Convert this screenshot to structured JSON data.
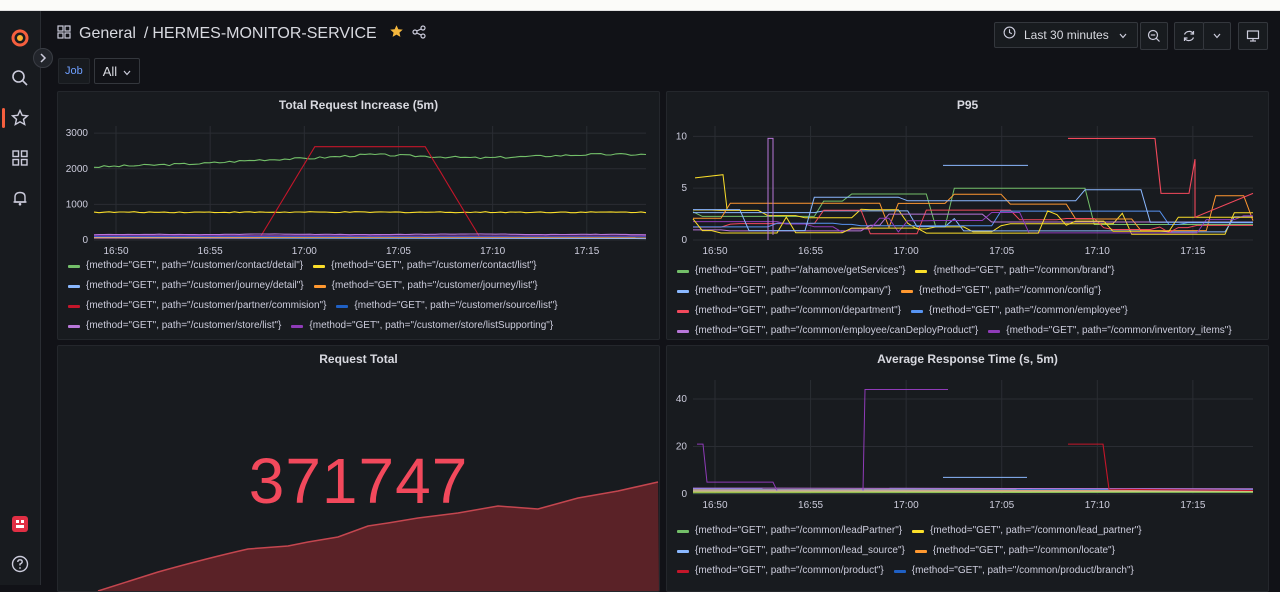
{
  "header": {
    "breadcrumb_folder": "General",
    "breadcrumb_separator": "/",
    "dashboard_title": "HERMES-MONITOR-SERVICE",
    "time_range": "Last 30 minutes"
  },
  "variables": {
    "job_label": "Job",
    "job_value": "All"
  },
  "colors": {
    "green": "#73bf69",
    "yellow": "#fade2a",
    "blue": "#8ab8ff",
    "orange": "#ff9830",
    "red": "#f2495c",
    "darkblue": "#5794f2",
    "darkred": "#c4162a",
    "navy": "#1f60c4",
    "purple": "#b877d9",
    "violet": "#8f3bb8",
    "stat_red": "#f2495c"
  },
  "panels": {
    "total_increase": {
      "title": "Total Request Increase (5m)",
      "legend": [
        {
          "label": "{method=\"GET\", path=\"/customer/contact/detail\"}",
          "color": "#73bf69"
        },
        {
          "label": "{method=\"GET\", path=\"/customer/contact/list\"}",
          "color": "#fade2a"
        },
        {
          "label": "{method=\"GET\", path=\"/customer/journey/detail\"}",
          "color": "#8ab8ff"
        },
        {
          "label": "{method=\"GET\", path=\"/customer/journey/list\"}",
          "color": "#ff9830"
        },
        {
          "label": "{method=\"GET\", path=\"/customer/partner/commision\"}",
          "color": "#c4162a"
        },
        {
          "label": "{method=\"GET\", path=\"/customer/source/list\"}",
          "color": "#1f60c4"
        },
        {
          "label": "{method=\"GET\", path=\"/customer/store/list\"}",
          "color": "#b877d9"
        },
        {
          "label": "{method=\"GET\", path=\"/customer/store/listSupporting\"}",
          "color": "#8f3bb8"
        }
      ]
    },
    "p95": {
      "title": "P95",
      "legend": [
        {
          "label": "{method=\"GET\", path=\"/ahamove/getServices\"}",
          "color": "#73bf69"
        },
        {
          "label": "{method=\"GET\", path=\"/common/brand\"}",
          "color": "#fade2a"
        },
        {
          "label": "{method=\"GET\", path=\"/common/company\"}",
          "color": "#8ab8ff"
        },
        {
          "label": "{method=\"GET\", path=\"/common/config\"}",
          "color": "#ff9830"
        },
        {
          "label": "{method=\"GET\", path=\"/common/department\"}",
          "color": "#f2495c"
        },
        {
          "label": "{method=\"GET\", path=\"/common/employee\"}",
          "color": "#5794f2"
        },
        {
          "label": "{method=\"GET\", path=\"/common/employee/canDeployProduct\"}",
          "color": "#b877d9"
        },
        {
          "label": "{method=\"GET\", path=\"/common/inventory_items\"}",
          "color": "#8f3bb8"
        }
      ]
    },
    "request_total": {
      "title": "Request Total",
      "value": "371747"
    },
    "avg_response": {
      "title": "Average Response Time (s, 5m)",
      "legend": [
        {
          "label": "{method=\"GET\", path=\"/common/leadPartner\"}",
          "color": "#73bf69"
        },
        {
          "label": "{method=\"GET\", path=\"/common/lead_partner\"}",
          "color": "#fade2a"
        },
        {
          "label": "{method=\"GET\", path=\"/common/lead_source\"}",
          "color": "#8ab8ff"
        },
        {
          "label": "{method=\"GET\", path=\"/common/locate\"}",
          "color": "#ff9830"
        },
        {
          "label": "{method=\"GET\", path=\"/common/product\"}",
          "color": "#c4162a"
        },
        {
          "label": "{method=\"GET\", path=\"/common/product/branch\"}",
          "color": "#1f60c4"
        }
      ]
    }
  },
  "chart_data": [
    {
      "type": "line",
      "title": "Total Request Increase (5m)",
      "x_ticks": [
        "16:50",
        "16:55",
        "17:00",
        "17:05",
        "17:10",
        "17:15"
      ],
      "y_ticks": [
        0,
        1000,
        2000,
        3000
      ],
      "ylim": [
        0,
        3200
      ],
      "series": [
        {
          "name": "{method=\"GET\", path=\"/customer/contact/detail\"}",
          "values": [
            2050,
            2100,
            2150,
            2250,
            2300,
            2400,
            2350,
            2300,
            2350,
            2400,
            2400
          ],
          "color": "#73bf69"
        },
        {
          "name": "{method=\"GET\", path=\"/customer/contact/list\"}",
          "values": [
            780,
            780,
            780,
            780,
            780,
            780,
            780,
            780,
            780,
            780,
            780
          ],
          "color": "#fade2a"
        },
        {
          "name": "{method=\"GET\", path=\"/customer/partner/commision\"}",
          "values": [
            50,
            50,
            50,
            50,
            2620,
            2620,
            2620,
            50,
            50,
            50,
            50
          ],
          "color": "#c4162a"
        },
        {
          "name": "{method=\"GET\", path=\"/customer/store/list\"}",
          "values": [
            150,
            160,
            150,
            170,
            160,
            150,
            160,
            170,
            150,
            160,
            150
          ],
          "color": "#b877d9"
        }
      ]
    },
    {
      "type": "line",
      "title": "P95",
      "x_ticks": [
        "16:50",
        "16:55",
        "17:00",
        "17:05",
        "17:10",
        "17:15"
      ],
      "y_ticks": [
        0,
        5,
        10
      ],
      "ylim": [
        0,
        11
      ]
    },
    {
      "type": "line",
      "title": "Average Response Time (s, 5m)",
      "x_ticks": [
        "16:50",
        "16:55",
        "17:00",
        "17:05",
        "17:10",
        "17:15"
      ],
      "y_ticks": [
        0,
        20,
        40
      ],
      "ylim": [
        0,
        48
      ]
    }
  ]
}
